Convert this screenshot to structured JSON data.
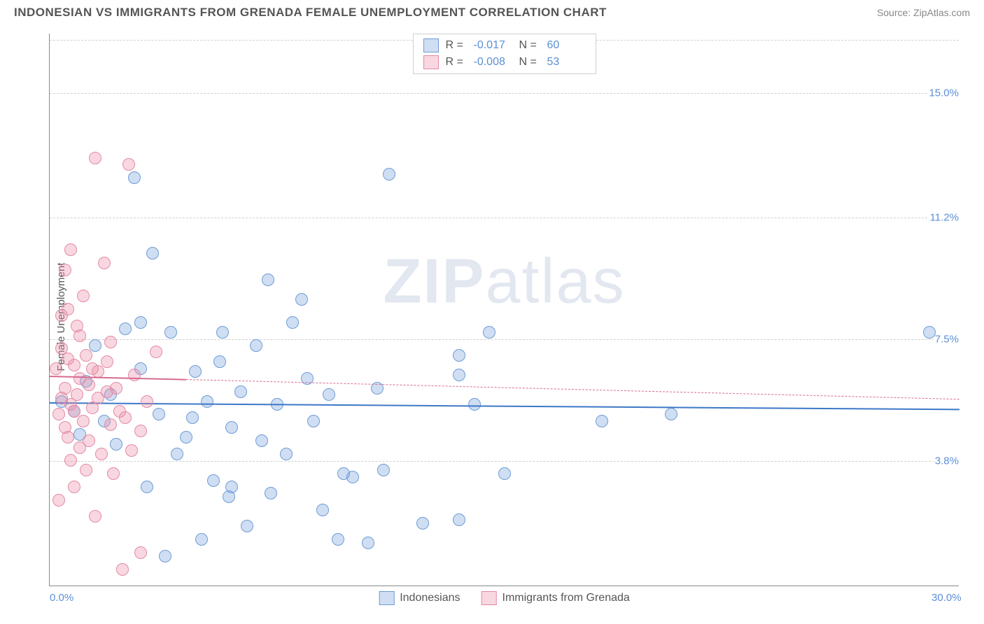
{
  "header": {
    "title": "INDONESIAN VS IMMIGRANTS FROM GRENADA FEMALE UNEMPLOYMENT CORRELATION CHART",
    "source": "Source: ZipAtlas.com"
  },
  "chart": {
    "type": "scatter",
    "ylabel": "Female Unemployment",
    "watermark_bold": "ZIP",
    "watermark_rest": "atlas",
    "background_color": "#ffffff",
    "grid_color": "#d0d0d0",
    "axis_color": "#888888",
    "xlim": [
      0,
      30
    ],
    "ylim": [
      0,
      16.8
    ],
    "xtick_labels": [
      {
        "value": 0,
        "label": "0.0%"
      },
      {
        "value": 30,
        "label": "30.0%"
      }
    ],
    "ytick_labels": [
      {
        "value": 3.8,
        "label": "3.8%"
      },
      {
        "value": 7.5,
        "label": "7.5%"
      },
      {
        "value": 11.2,
        "label": "11.2%"
      },
      {
        "value": 15.0,
        "label": "15.0%"
      }
    ],
    "gridlines_y": [
      3.8,
      7.5,
      11.2,
      15.0,
      16.6
    ],
    "series": [
      {
        "name": "Indonesians",
        "fill_color": "rgba(120,160,220,0.35)",
        "stroke_color": "#6d9cd6",
        "marker_radius": 9,
        "trend": {
          "y_start": 5.6,
          "y_end": 5.4,
          "color": "#3d78c7",
          "style": "solid",
          "x_start": 0,
          "x_end": 30
        },
        "R": "-0.017",
        "N": "60",
        "points": [
          [
            0.4,
            5.6
          ],
          [
            0.8,
            5.3
          ],
          [
            1.0,
            4.6
          ],
          [
            1.2,
            6.2
          ],
          [
            1.5,
            7.3
          ],
          [
            1.8,
            5.0
          ],
          [
            2.0,
            5.8
          ],
          [
            2.2,
            4.3
          ],
          [
            2.5,
            7.8
          ],
          [
            2.8,
            12.4
          ],
          [
            3.0,
            6.6
          ],
          [
            3.2,
            3.0
          ],
          [
            3.4,
            10.1
          ],
          [
            3.6,
            5.2
          ],
          [
            3.8,
            0.9
          ],
          [
            4.0,
            7.7
          ],
          [
            4.2,
            4.0
          ],
          [
            4.5,
            4.5
          ],
          [
            4.7,
            5.1
          ],
          [
            5.0,
            1.4
          ],
          [
            5.2,
            5.6
          ],
          [
            5.4,
            3.2
          ],
          [
            5.7,
            7.7
          ],
          [
            5.9,
            2.7
          ],
          [
            6.0,
            4.8
          ],
          [
            6.3,
            5.9
          ],
          [
            6.5,
            1.8
          ],
          [
            6.8,
            7.3
          ],
          [
            7.0,
            4.4
          ],
          [
            7.2,
            9.3
          ],
          [
            7.5,
            5.5
          ],
          [
            7.8,
            4.0
          ],
          [
            8.0,
            8.0
          ],
          [
            8.3,
            8.7
          ],
          [
            8.5,
            6.3
          ],
          [
            9.0,
            2.3
          ],
          [
            9.2,
            5.8
          ],
          [
            9.5,
            1.4
          ],
          [
            9.7,
            3.4
          ],
          [
            10.0,
            3.3
          ],
          [
            10.5,
            1.3
          ],
          [
            11.0,
            3.5
          ],
          [
            11.2,
            12.5
          ],
          [
            13.5,
            6.4
          ],
          [
            13.5,
            7.0
          ],
          [
            13.5,
            2.0
          ],
          [
            14.0,
            5.5
          ],
          [
            14.5,
            7.7
          ],
          [
            15.0,
            3.4
          ],
          [
            18.2,
            5.0
          ],
          [
            20.5,
            5.2
          ],
          [
            29.0,
            7.7
          ],
          [
            10.8,
            6.0
          ],
          [
            6.0,
            3.0
          ],
          [
            4.8,
            6.5
          ],
          [
            3.0,
            8.0
          ],
          [
            8.7,
            5.0
          ],
          [
            12.3,
            1.9
          ],
          [
            5.6,
            6.8
          ],
          [
            7.3,
            2.8
          ]
        ]
      },
      {
        "name": "Immigrants from Grenada",
        "fill_color": "rgba(235,140,165,0.35)",
        "stroke_color": "#e48aa5",
        "marker_radius": 9,
        "trend_solid": {
          "y_start": 6.4,
          "y_end": 6.3,
          "color": "#d76b8f",
          "style": "solid",
          "x_start": 0,
          "x_end": 4.5
        },
        "trend_dash": {
          "y_start": 6.3,
          "y_end": 5.7,
          "color": "#d76b8f",
          "style": "dashed",
          "x_start": 4.5,
          "x_end": 30
        },
        "R": "-0.008",
        "N": "53",
        "points": [
          [
            0.2,
            6.6
          ],
          [
            0.3,
            5.2
          ],
          [
            0.4,
            7.2
          ],
          [
            0.4,
            5.7
          ],
          [
            0.5,
            9.6
          ],
          [
            0.5,
            6.0
          ],
          [
            0.6,
            8.4
          ],
          [
            0.6,
            4.5
          ],
          [
            0.7,
            10.2
          ],
          [
            0.7,
            5.5
          ],
          [
            0.8,
            6.7
          ],
          [
            0.8,
            3.0
          ],
          [
            0.9,
            5.8
          ],
          [
            0.9,
            7.9
          ],
          [
            1.0,
            4.2
          ],
          [
            1.0,
            6.3
          ],
          [
            1.1,
            5.0
          ],
          [
            1.1,
            8.8
          ],
          [
            1.2,
            7.0
          ],
          [
            1.2,
            3.5
          ],
          [
            1.3,
            6.1
          ],
          [
            1.4,
            5.4
          ],
          [
            1.5,
            13.0
          ],
          [
            1.5,
            2.1
          ],
          [
            1.6,
            6.5
          ],
          [
            1.7,
            4.0
          ],
          [
            1.8,
            9.8
          ],
          [
            1.9,
            5.9
          ],
          [
            2.0,
            7.4
          ],
          [
            2.1,
            3.4
          ],
          [
            2.2,
            6.0
          ],
          [
            2.4,
            0.5
          ],
          [
            2.5,
            5.1
          ],
          [
            2.6,
            12.8
          ],
          [
            2.8,
            6.4
          ],
          [
            3.0,
            4.7
          ],
          [
            3.0,
            1.0
          ],
          [
            3.2,
            5.6
          ],
          [
            3.5,
            7.1
          ],
          [
            0.3,
            2.6
          ],
          [
            0.5,
            4.8
          ],
          [
            0.6,
            6.9
          ],
          [
            0.8,
            5.3
          ],
          [
            1.0,
            7.6
          ],
          [
            1.3,
            4.4
          ],
          [
            1.6,
            5.7
          ],
          [
            1.9,
            6.8
          ],
          [
            2.3,
            5.3
          ],
          [
            2.7,
            4.1
          ],
          [
            0.4,
            8.2
          ],
          [
            0.7,
            3.8
          ],
          [
            1.4,
            6.6
          ],
          [
            2.0,
            4.9
          ]
        ]
      }
    ],
    "legend_top": {
      "rows": [
        {
          "swatch_fill": "rgba(120,160,220,0.35)",
          "swatch_stroke": "#6d9cd6",
          "R_label": "R =",
          "R_value": "-0.017",
          "N_label": "N =",
          "N_value": "60"
        },
        {
          "swatch_fill": "rgba(235,140,165,0.35)",
          "swatch_stroke": "#e48aa5",
          "R_label": "R =",
          "R_value": "-0.008",
          "N_label": "N =",
          "N_value": "53"
        }
      ]
    },
    "legend_bottom": {
      "items": [
        {
          "swatch_fill": "rgba(120,160,220,0.35)",
          "swatch_stroke": "#6d9cd6",
          "label": "Indonesians"
        },
        {
          "swatch_fill": "rgba(235,140,165,0.35)",
          "swatch_stroke": "#e48aa5",
          "label": "Immigrants from Grenada"
        }
      ]
    }
  }
}
